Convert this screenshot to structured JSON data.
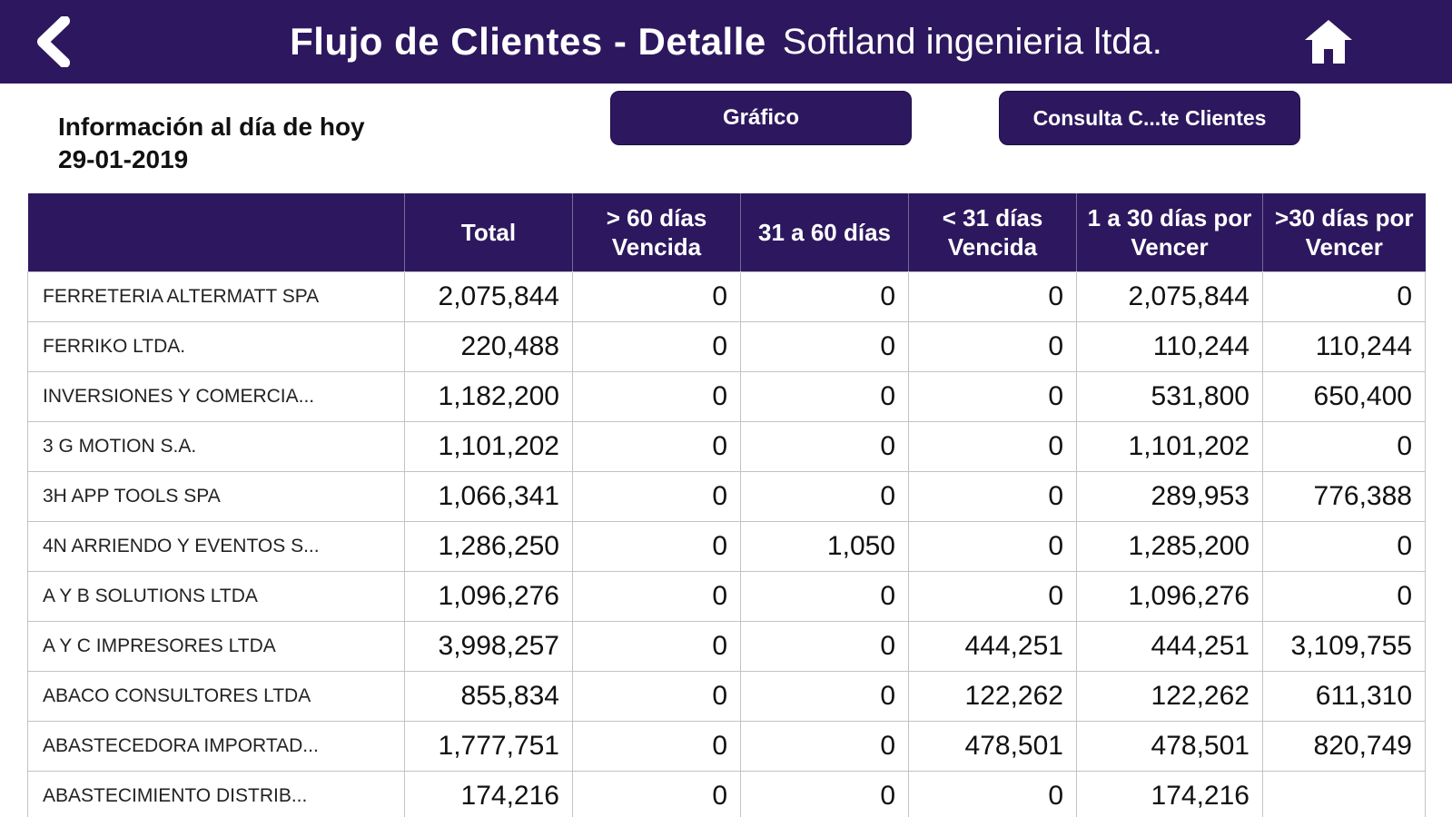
{
  "topbar": {
    "title_bold": "Flujo de Clientes - Detalle",
    "title_regular": "Softland ingenieria ltda.",
    "back_icon": "chevron-left",
    "home_icon": "home"
  },
  "info": {
    "line1": "Información al día de hoy",
    "line2": "29-01-2019"
  },
  "buttons": {
    "grafico": "Gráfico",
    "consulta": "Consulta C...te Clientes"
  },
  "colors": {
    "header_purple": "#2d185f",
    "grid_line": "#c3c3c3",
    "text": "#111111"
  },
  "table": {
    "columns": {
      "c0": "",
      "c1": "Total",
      "c2": "> 60 días Vencida",
      "c3": "31 a 60 días",
      "c4": "< 31 días Vencida",
      "c5": "1 a 30 días por Vencer",
      "c6": ">30 días por Vencer"
    },
    "rows": [
      {
        "name": "FERRETERIA ALTERMATT SPA",
        "values": [
          "2,075,844",
          "0",
          "0",
          "0",
          "2,075,844",
          "0"
        ]
      },
      {
        "name": "FERRIKO LTDA.",
        "values": [
          "220,488",
          "0",
          "0",
          "0",
          "110,244",
          "110,244"
        ]
      },
      {
        "name": "INVERSIONES Y COMERCIA...",
        "values": [
          "1,182,200",
          "0",
          "0",
          "0",
          "531,800",
          "650,400"
        ]
      },
      {
        "name": "3 G MOTION S.A.",
        "values": [
          "1,101,202",
          "0",
          "0",
          "0",
          "1,101,202",
          "0"
        ]
      },
      {
        "name": "3H APP TOOLS SPA",
        "values": [
          "1,066,341",
          "0",
          "0",
          "0",
          "289,953",
          "776,388"
        ]
      },
      {
        "name": "4N ARRIENDO Y EVENTOS S...",
        "values": [
          "1,286,250",
          "0",
          "1,050",
          "0",
          "1,285,200",
          "0"
        ]
      },
      {
        "name": "A Y B SOLUTIONS LTDA",
        "values": [
          "1,096,276",
          "0",
          "0",
          "0",
          "1,096,276",
          "0"
        ]
      },
      {
        "name": "A Y C IMPRESORES LTDA",
        "values": [
          "3,998,257",
          "0",
          "0",
          "444,251",
          "444,251",
          "3,109,755"
        ]
      },
      {
        "name": "ABACO CONSULTORES LTDA",
        "values": [
          "855,834",
          "0",
          "0",
          "122,262",
          "122,262",
          "611,310"
        ]
      },
      {
        "name": "ABASTECEDORA IMPORTAD...",
        "values": [
          "1,777,751",
          "0",
          "0",
          "478,501",
          "478,501",
          "820,749"
        ]
      },
      {
        "name": "ABASTECIMIENTO DISTRIB...",
        "values": [
          "174,216",
          "0",
          "0",
          "0",
          "174,216",
          ""
        ]
      }
    ]
  }
}
